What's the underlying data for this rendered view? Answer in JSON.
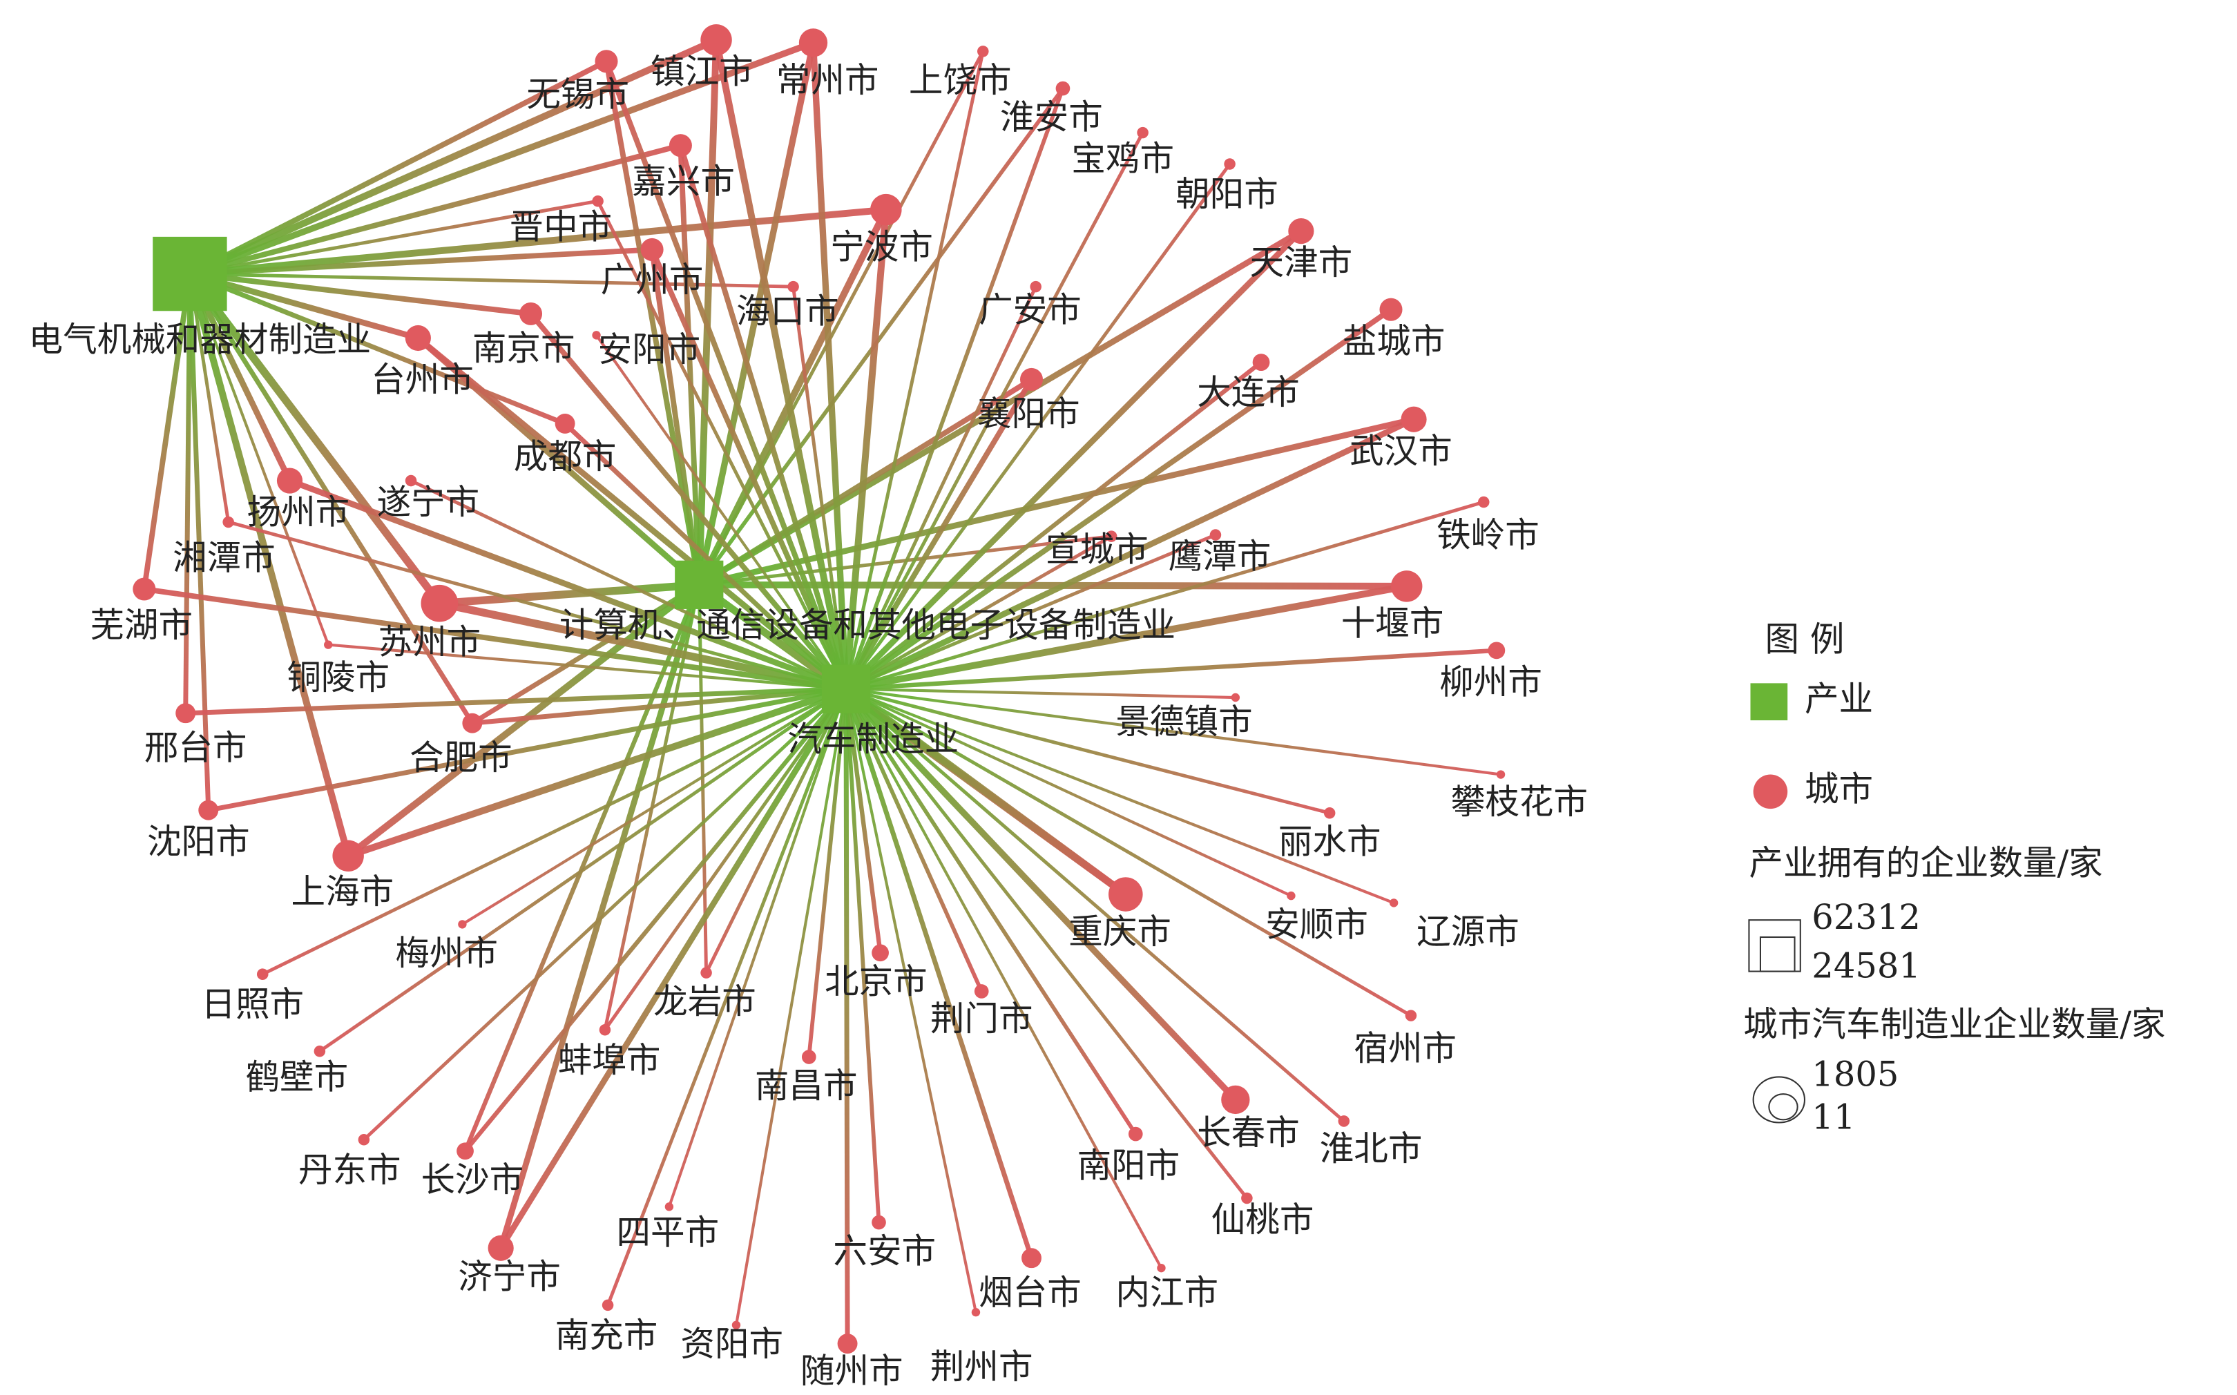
{
  "industries": [
    {
      "label": "电气机械和器材制造业"
    },
    {
      "label": "计算机、通信设备和其他电子设备制造业"
    },
    {
      "label": "汽车制造业"
    }
  ],
  "cities": [
    {
      "label": "无锡市"
    },
    {
      "label": "镇江市"
    },
    {
      "label": "常州市"
    },
    {
      "label": "上饶市"
    },
    {
      "label": "淮安市"
    },
    {
      "label": "宝鸡市"
    },
    {
      "label": "朝阳市"
    },
    {
      "label": "天津市"
    },
    {
      "label": "盐城市"
    },
    {
      "label": "大连市"
    },
    {
      "label": "武汉市"
    },
    {
      "label": "铁岭市"
    },
    {
      "label": "十堰市"
    },
    {
      "label": "柳州市"
    },
    {
      "label": "景德镇市"
    },
    {
      "label": "攀枝花市"
    },
    {
      "label": "丽水市"
    },
    {
      "label": "安顺市"
    },
    {
      "label": "辽源市"
    },
    {
      "label": "重庆市"
    },
    {
      "label": "宿州市"
    },
    {
      "label": "淮北市"
    },
    {
      "label": "长春市"
    },
    {
      "label": "仙桃市"
    },
    {
      "label": "南阳市"
    },
    {
      "label": "内江市"
    },
    {
      "label": "烟台市"
    },
    {
      "label": "荆州市"
    },
    {
      "label": "随州市"
    },
    {
      "label": "六安市"
    },
    {
      "label": "资阳市"
    },
    {
      "label": "南充市"
    },
    {
      "label": "四平市"
    },
    {
      "label": "济宁市"
    },
    {
      "label": "长沙市"
    },
    {
      "label": "丹东市"
    },
    {
      "label": "鹤壁市"
    },
    {
      "label": "日照市"
    },
    {
      "label": "蚌埠市"
    },
    {
      "label": "南昌市"
    },
    {
      "label": "荆门市"
    },
    {
      "label": "北京市"
    },
    {
      "label": "龙岩市"
    },
    {
      "label": "梅州市"
    },
    {
      "label": "上海市"
    },
    {
      "label": "合肥市"
    },
    {
      "label": "沈阳市"
    },
    {
      "label": "邢台市"
    },
    {
      "label": "芜湖市"
    },
    {
      "label": "铜陵市"
    },
    {
      "label": "苏州市"
    },
    {
      "label": "湘潭市"
    },
    {
      "label": "扬州市"
    },
    {
      "label": "遂宁市"
    },
    {
      "label": "成都市"
    },
    {
      "label": "台州市"
    },
    {
      "label": "南京市"
    },
    {
      "label": "安阳市"
    },
    {
      "label": "广州市"
    },
    {
      "label": "海口市"
    },
    {
      "label": "晋中市"
    },
    {
      "label": "嘉兴市"
    },
    {
      "label": "宁波市"
    },
    {
      "label": "广安市"
    },
    {
      "label": "襄阳市"
    },
    {
      "label": "宣城市"
    },
    {
      "label": "鹰潭市"
    }
  ],
  "legend": {
    "title": "图 例",
    "industry": "产业",
    "city": "城市",
    "industry_size_title": "产业拥有的企业数量/家",
    "industry_size_values": [
      62312,
      24581
    ],
    "city_size_title": "城市汽车制造业企业数量/家",
    "city_size_values": [
      1805,
      11
    ]
  }
}
